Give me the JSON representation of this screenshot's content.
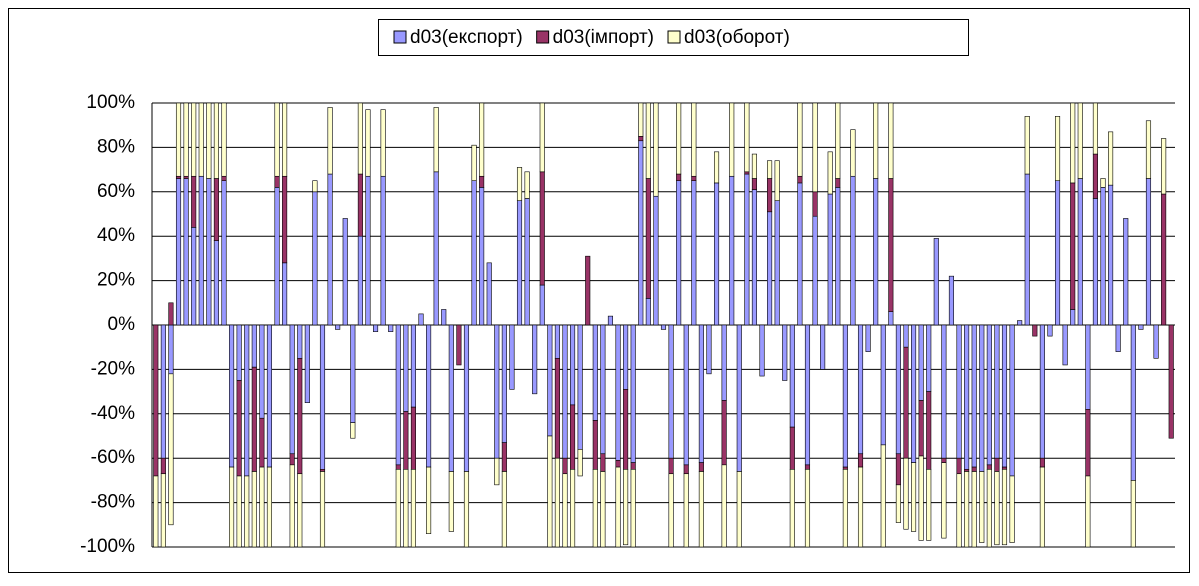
{
  "chart_data": {
    "type": "stacked-bar",
    "categories": [
      null,
      null,
      null,
      null,
      null,
      null,
      null,
      null,
      null,
      null,
      null,
      null,
      null,
      null,
      null,
      null,
      null,
      null,
      null,
      null,
      null,
      null,
      null,
      null,
      null,
      null,
      null,
      null,
      null,
      null,
      null,
      null,
      null,
      null,
      null,
      null,
      null,
      null,
      null,
      null,
      null,
      null,
      null,
      null,
      null,
      null,
      null,
      null,
      null,
      null,
      null,
      null,
      null,
      null,
      null,
      null,
      null,
      null,
      null,
      null,
      null,
      null,
      null,
      null,
      null,
      null,
      null,
      null,
      null,
      null,
      null,
      null,
      null,
      null,
      null,
      null,
      null,
      null,
      null,
      null,
      null,
      null,
      null,
      null,
      null,
      null,
      null,
      null,
      null,
      null,
      null,
      null,
      null,
      null,
      null,
      null,
      null,
      null,
      null,
      null,
      null,
      null,
      null,
      null,
      null,
      null,
      null,
      null,
      null,
      null,
      null,
      null,
      null,
      null,
      null,
      null,
      null,
      null,
      null,
      null,
      null,
      null,
      null,
      null,
      null,
      null,
      null,
      null,
      null,
      null,
      null,
      null,
      null,
      null,
      null
    ],
    "series": [
      {
        "name": "d03(експорт)",
        "color": "#9999ff",
        "values": [
          0,
          -60,
          -22,
          66,
          66,
          44,
          67,
          66,
          38,
          65,
          -64,
          -25,
          -68,
          -19,
          -42,
          -64,
          62,
          28,
          -58,
          -15,
          -35,
          60,
          -65,
          68,
          -2,
          48,
          -44,
          40,
          67,
          -3,
          67,
          -3,
          -63,
          -39,
          -37,
          5,
          -64,
          69,
          7,
          -66,
          0,
          -66,
          65,
          62,
          28,
          -60,
          -53,
          -29,
          56,
          57,
          -31,
          18,
          -50,
          -15,
          -60,
          -36,
          -56,
          0,
          -43,
          -58,
          4,
          -61,
          -29,
          -62,
          83,
          12,
          58,
          -2,
          -60,
          65,
          -63,
          65,
          -62,
          -22,
          64,
          -34,
          67,
          -66,
          68,
          61,
          -23,
          51,
          56,
          -25,
          -46,
          64,
          -63,
          49,
          -20,
          59,
          62,
          -64,
          67,
          -58,
          -12,
          66,
          -54,
          6,
          -58,
          -10,
          -62,
          -34,
          -30,
          39,
          -60,
          22,
          -60,
          -65,
          -64,
          -66,
          -63,
          -60,
          -64,
          -68,
          2,
          68,
          0,
          -60,
          -5,
          65,
          -18,
          7,
          66,
          -38,
          57,
          62,
          63,
          -12,
          48,
          -70,
          -2,
          66,
          -15,
          0,
          0
        ]
      },
      {
        "name": "d03(імпорт)",
        "color": "#993366",
        "values": [
          -68,
          -7,
          10,
          1,
          1,
          23,
          0,
          0,
          28,
          2,
          0,
          -43,
          0,
          -47,
          -22,
          0,
          5,
          39,
          -5,
          -52,
          0,
          0,
          -1,
          0,
          0,
          0,
          0,
          28,
          0,
          0,
          0,
          0,
          -2,
          -26,
          -28,
          0,
          0,
          0,
          0,
          0,
          -18,
          0,
          0,
          5,
          0,
          0,
          -13,
          0,
          0,
          0,
          0,
          51,
          0,
          -45,
          -7,
          -29,
          0,
          31,
          -22,
          -8,
          0,
          -3,
          -36,
          -3,
          2,
          54,
          0,
          0,
          -7,
          3,
          -4,
          2,
          -4,
          0,
          0,
          -29,
          0,
          0,
          1,
          5,
          0,
          15,
          0,
          0,
          -19,
          3,
          -2,
          11,
          0,
          0,
          4,
          -1,
          0,
          -6,
          0,
          0,
          0,
          60,
          -14,
          -50,
          0,
          -25,
          -35,
          0,
          -2,
          0,
          -7,
          -1,
          -2,
          0,
          -2,
          -6,
          -1,
          0,
          0,
          0,
          -5,
          -4,
          0,
          0,
          0,
          57,
          0,
          -30,
          20,
          0,
          0,
          0,
          0,
          0,
          0,
          0,
          0,
          59,
          -51
        ]
      },
      {
        "name": "d03(оборот)",
        "color": "#ffffcc",
        "values": [
          -32,
          -33,
          -68,
          33,
          33,
          33,
          33,
          34,
          34,
          33,
          -36,
          -32,
          -32,
          -34,
          -36,
          -36,
          33,
          33,
          -37,
          -33,
          0,
          5,
          -34,
          30,
          0,
          0,
          -7,
          32,
          30,
          0,
          30,
          0,
          -35,
          -35,
          -35,
          0,
          -30,
          29,
          0,
          -27,
          0,
          -34,
          16,
          33,
          0,
          -12,
          -34,
          0,
          15,
          12,
          0,
          31,
          -50,
          -40,
          -33,
          -35,
          -12,
          0,
          -35,
          -34,
          0,
          -36,
          -34,
          -35,
          15,
          34,
          42,
          0,
          -33,
          32,
          -33,
          33,
          -34,
          0,
          14,
          -37,
          33,
          -34,
          31,
          11,
          0,
          8,
          18,
          0,
          -35,
          33,
          -35,
          40,
          0,
          19,
          34,
          -35,
          21,
          -36,
          0,
          34,
          -46,
          34,
          -17,
          -32,
          -31,
          -38,
          -32,
          0,
          -34,
          0,
          -33,
          -34,
          -34,
          -32,
          -35,
          -33,
          -34,
          -30,
          0,
          26,
          0,
          -36,
          0,
          29,
          0,
          36,
          34,
          -32,
          23,
          4,
          24,
          0,
          0,
          -30,
          0,
          26,
          0,
          25,
          0
        ]
      }
    ],
    "ylim": [
      -100,
      100
    ],
    "yticks": [
      {
        "value": -100,
        "label": "-100%"
      },
      {
        "value": -80,
        "label": "-80%"
      },
      {
        "value": -60,
        "label": "-60%"
      },
      {
        "value": -40,
        "label": "-40%"
      },
      {
        "value": -20,
        "label": "-20%"
      },
      {
        "value": 0,
        "label": "0%"
      },
      {
        "value": 20,
        "label": "20%"
      },
      {
        "value": 40,
        "label": "40%"
      },
      {
        "value": 60,
        "label": "60%"
      },
      {
        "value": 80,
        "label": "80%"
      },
      {
        "value": 100,
        "label": "100%"
      }
    ],
    "grid": true,
    "legend": "top"
  }
}
